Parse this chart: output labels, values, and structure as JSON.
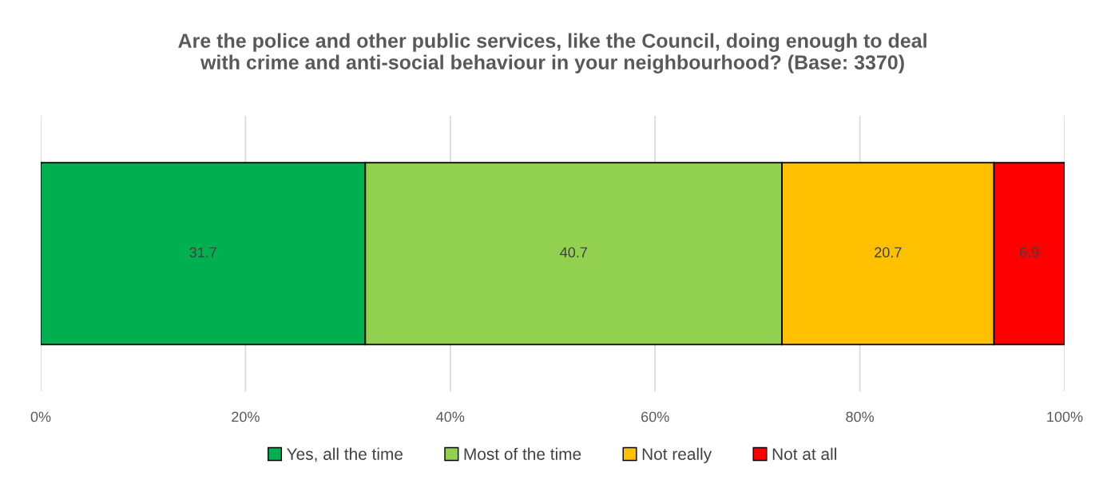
{
  "chart_data": {
    "type": "bar",
    "orientation": "horizontal",
    "stacked": true,
    "title": "Are the police and other public services, like the Council, doing enough to deal\nwith crime and anti-social behaviour in your neighbourhood? (Base: 3370)",
    "categories": [
      null
    ],
    "series": [
      {
        "name": "Yes, all the time",
        "color": "#00b050",
        "values": [
          31.7
        ]
      },
      {
        "name": "Most of the time",
        "color": "#92d050",
        "values": [
          40.7
        ]
      },
      {
        "name": "Not really",
        "color": "#ffc000",
        "values": [
          20.7
        ]
      },
      {
        "name": "Not at all",
        "color": "#ff0000",
        "values": [
          6.9
        ]
      }
    ],
    "xlim": [
      0,
      100
    ],
    "xticks": [
      {
        "value": 0,
        "label": "0%"
      },
      {
        "value": 20,
        "label": "20%"
      },
      {
        "value": 40,
        "label": "40%"
      },
      {
        "value": 60,
        "label": "60%"
      },
      {
        "value": 80,
        "label": "80%"
      },
      {
        "value": 100,
        "label": "100%"
      }
    ],
    "data_labels": true,
    "grid": "x",
    "legend": "bottom",
    "tick_labels": "x"
  }
}
